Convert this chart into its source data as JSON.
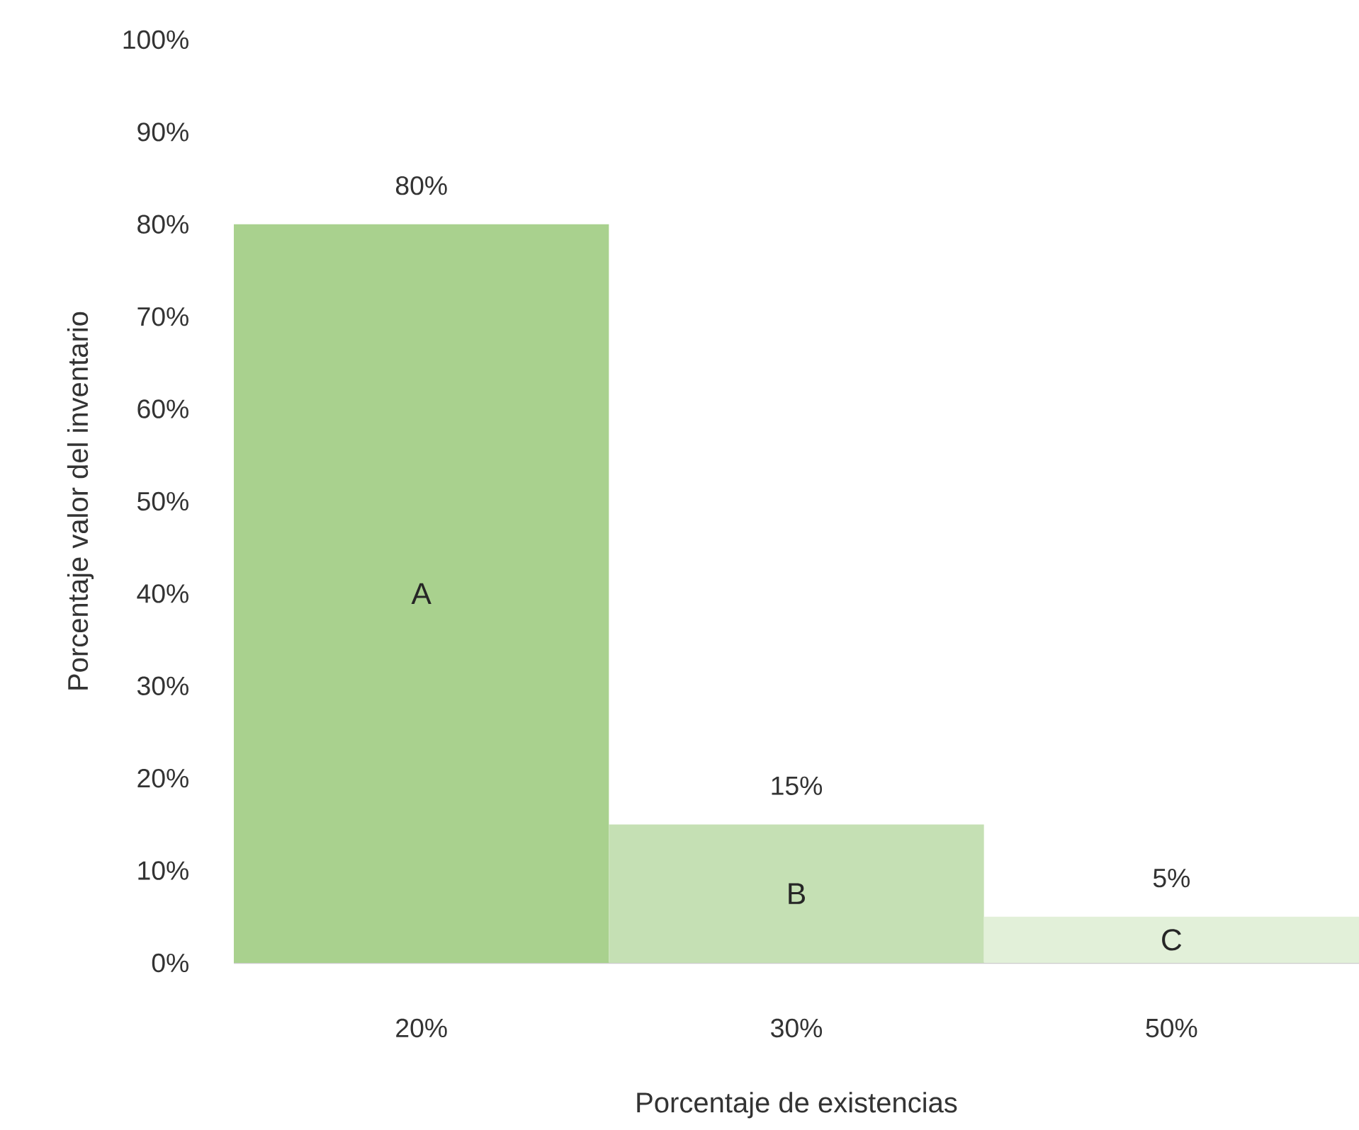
{
  "chart_data": {
    "type": "bar",
    "xlabel": "Porcentaje de existencias",
    "ylabel": "Porcentaje valor del inventario",
    "categories": [
      "20%",
      "30%",
      "50%"
    ],
    "values": [
      80,
      15,
      5
    ],
    "colors": [
      "#a9d18e",
      "#c5e0b4",
      "#e2f0d9"
    ],
    "value_labels": [
      "80%",
      "15%",
      "5%"
    ],
    "ylim": [
      0,
      100
    ],
    "yticks": [
      {
        "value": 0,
        "label": "0%"
      },
      {
        "value": 10,
        "label": "10%"
      },
      {
        "value": 20,
        "label": "20%"
      },
      {
        "value": 30,
        "label": "30%"
      },
      {
        "value": 40,
        "label": "40%"
      },
      {
        "value": 50,
        "label": "50%"
      },
      {
        "value": 60,
        "label": "60%"
      },
      {
        "value": 70,
        "label": "70%"
      },
      {
        "value": 80,
        "label": "80%"
      },
      {
        "value": 90,
        "label": "90%"
      },
      {
        "value": 100,
        "label": "100%"
      }
    ],
    "annotations": [
      "A",
      "B",
      "C"
    ],
    "grid": false
  }
}
